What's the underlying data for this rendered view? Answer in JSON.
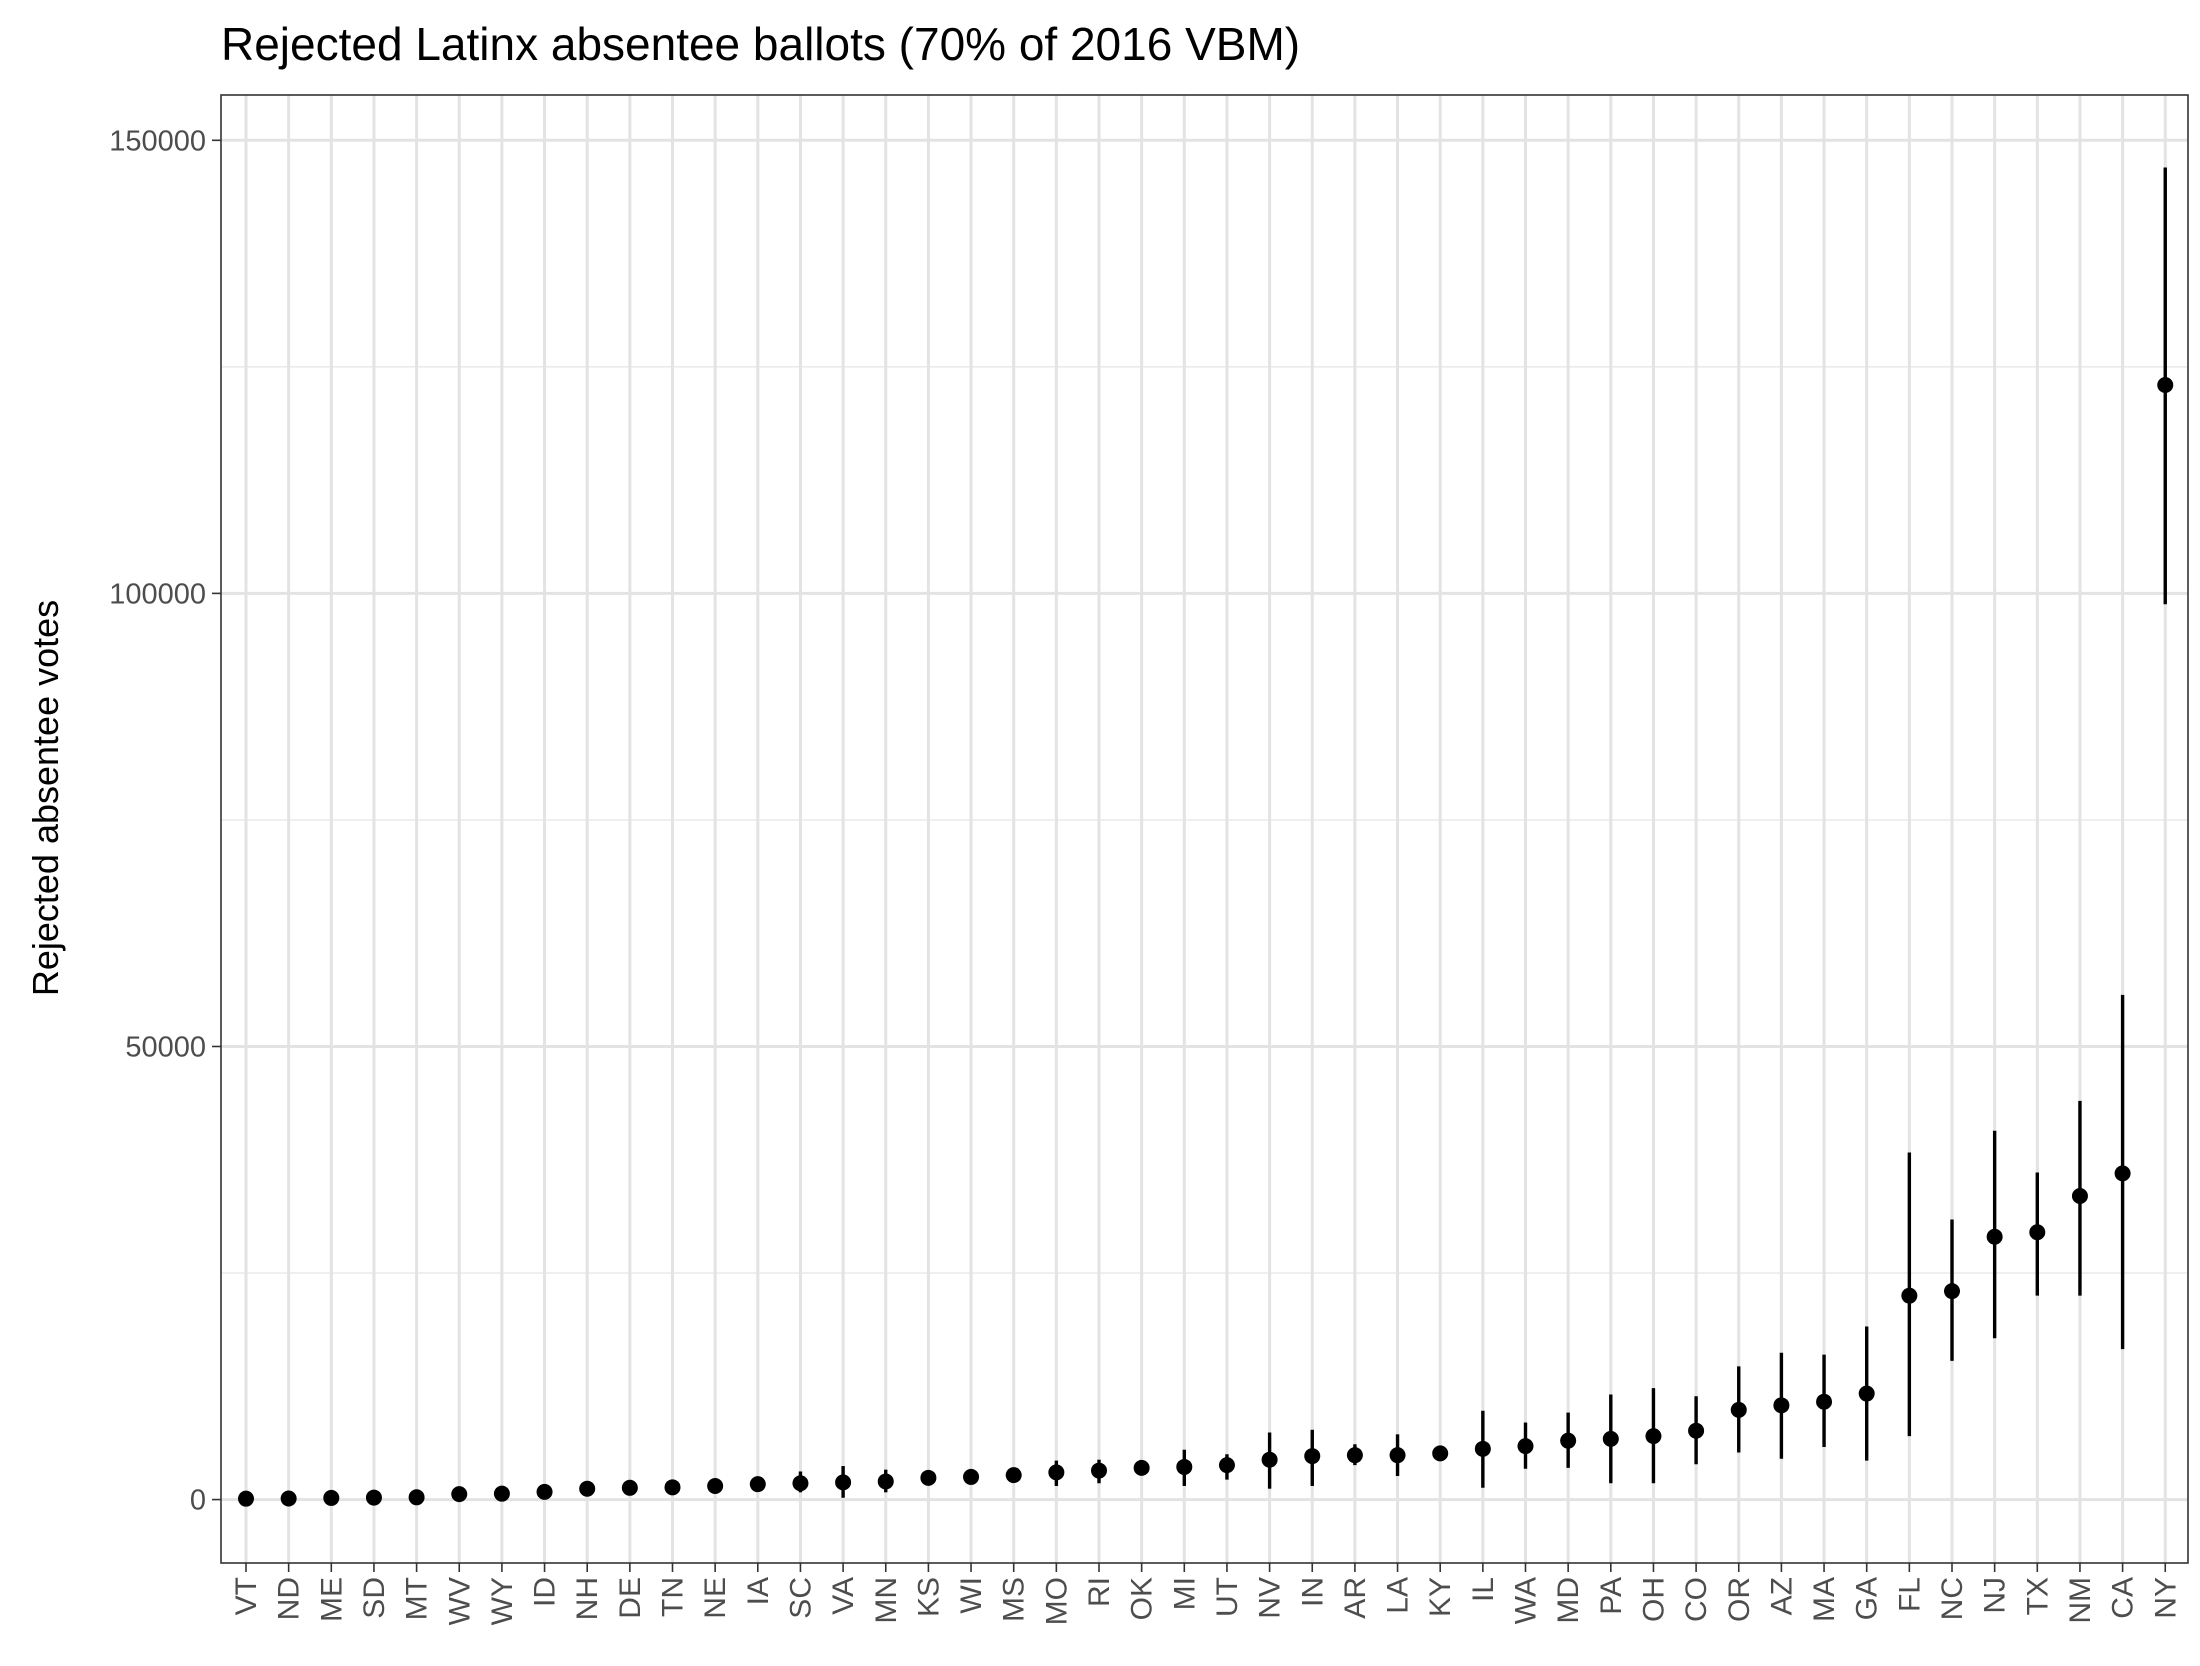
{
  "chart_data": {
    "type": "scatter",
    "title": "Rejected Latinx absentee ballots (70% of 2016 VBM)",
    "xlabel": "",
    "ylabel": "Rejected absentee votes",
    "ylim": [
      -7000,
      155000
    ],
    "yticks": [
      0,
      50000,
      100000,
      150000
    ],
    "grid": true,
    "error_bars": true,
    "categories": [
      "VT",
      "ND",
      "ME",
      "SD",
      "MT",
      "WV",
      "WY",
      "ID",
      "NH",
      "DE",
      "TN",
      "NE",
      "IA",
      "SC",
      "VA",
      "MN",
      "KS",
      "WI",
      "MS",
      "MO",
      "RI",
      "OK",
      "MI",
      "UT",
      "NV",
      "IN",
      "AR",
      "LA",
      "KY",
      "IL",
      "WA",
      "MD",
      "PA",
      "OH",
      "CO",
      "OR",
      "AZ",
      "MA",
      "GA",
      "FL",
      "NC",
      "NJ",
      "TX",
      "NM",
      "CA",
      "NY"
    ],
    "values": [
      100,
      120,
      180,
      220,
      250,
      600,
      650,
      850,
      1200,
      1300,
      1350,
      1500,
      1700,
      1800,
      1900,
      2000,
      2400,
      2500,
      2700,
      3000,
      3200,
      3500,
      3600,
      3800,
      4400,
      4800,
      4900,
      4900,
      5100,
      5600,
      5900,
      6500,
      6700,
      7000,
      7600,
      9900,
      10400,
      10800,
      11700,
      22500,
      23000,
      29000,
      29500,
      33500,
      36000,
      123000
    ],
    "lower": [
      100,
      120,
      180,
      220,
      250,
      600,
      650,
      850,
      1200,
      1300,
      1350,
      1500,
      1700,
      800,
      200,
      800,
      2400,
      2500,
      2700,
      1500,
      1800,
      3500,
      1500,
      2200,
      1200,
      1500,
      3800,
      2600,
      5100,
      1300,
      3400,
      3500,
      1800,
      1800,
      3900,
      5200,
      4500,
      5800,
      4300,
      7000,
      15300,
      17800,
      22500,
      22500,
      16600,
      98800
    ],
    "upper": [
      100,
      120,
      180,
      220,
      250,
      600,
      650,
      850,
      1200,
      1300,
      1350,
      1500,
      1700,
      3100,
      3700,
      3300,
      2400,
      2500,
      2700,
      4300,
      4400,
      3500,
      5500,
      5000,
      7400,
      7700,
      6100,
      7200,
      5100,
      9800,
      8500,
      9600,
      11600,
      12300,
      11400,
      14700,
      16200,
      16000,
      19100,
      38300,
      30900,
      40700,
      36100,
      44000,
      55700,
      147000
    ]
  }
}
